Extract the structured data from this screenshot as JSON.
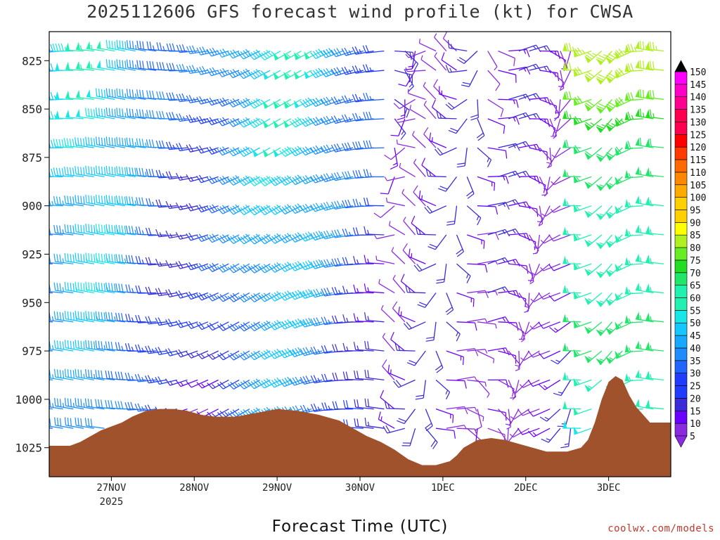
{
  "title": "2025112606 GFS forecast wind profile (kt) for CWSA",
  "xaxis_title": "Forecast Time (UTC)",
  "credit": "coolwx.com/models",
  "colors": {
    "terrain": "#a0522d",
    "scale": [
      "#8a2be2",
      "#6a00ff",
      "#3b2bd9",
      "#1f3cff",
      "#1e66ff",
      "#1e8cff",
      "#17a8ff",
      "#14c8ff",
      "#19e6e6",
      "#20f0b0",
      "#22e66a",
      "#22dd22",
      "#66ee22",
      "#b0f020",
      "#ffff00",
      "#ffd000",
      "#ffaa00",
      "#ff8800",
      "#ff6a00",
      "#ff3b00",
      "#ff0000",
      "#ff0050",
      "#ff0090",
      "#ff00c8",
      "#ff00ff"
    ]
  },
  "chart_data": {
    "type": "wind-barb-profile",
    "title": "2025112606 GFS forecast wind profile (kt) for CWSA",
    "xlabel": "Forecast Time (UTC)",
    "ylabel": "",
    "y_reversed": true,
    "ylim": [
      1040,
      810
    ],
    "y_ticks": [
      825,
      850,
      875,
      900,
      925,
      950,
      975,
      1000,
      1025
    ],
    "pressure_levels": [
      820,
      830,
      845,
      855,
      870,
      885,
      900,
      915,
      930,
      945,
      960,
      975,
      990,
      1005,
      1015
    ],
    "x_ticks": [
      {
        "label": "27NOV",
        "sub": "2025",
        "t": 18
      },
      {
        "label": "28NOV",
        "sub": "",
        "t": 42
      },
      {
        "label": "29NOV",
        "sub": "",
        "t": 66
      },
      {
        "label": "30NOV",
        "sub": "",
        "t": 90
      },
      {
        "label": "1DEC",
        "sub": "",
        "t": 114
      },
      {
        "label": "2DEC",
        "sub": "",
        "t": 138
      },
      {
        "label": "3DEC",
        "sub": "",
        "t": 162
      }
    ],
    "xlim": [
      0,
      180
    ],
    "colorbar": {
      "levels": [
        5,
        10,
        15,
        20,
        25,
        30,
        35,
        40,
        45,
        50,
        55,
        60,
        65,
        70,
        75,
        80,
        85,
        90,
        95,
        100,
        105,
        110,
        115,
        120,
        125,
        130,
        135,
        140,
        145,
        150
      ],
      "units": "kt"
    },
    "terrain_surface_pressure": [
      {
        "t": 0,
        "p": 1024
      },
      {
        "t": 6,
        "p": 1024
      },
      {
        "t": 9,
        "p": 1022
      },
      {
        "t": 12,
        "p": 1019
      },
      {
        "t": 15,
        "p": 1016
      },
      {
        "t": 18,
        "p": 1014
      },
      {
        "t": 21,
        "p": 1012
      },
      {
        "t": 24,
        "p": 1009
      },
      {
        "t": 28,
        "p": 1006
      },
      {
        "t": 32,
        "p": 1005
      },
      {
        "t": 36,
        "p": 1005
      },
      {
        "t": 40,
        "p": 1006
      },
      {
        "t": 44,
        "p": 1008
      },
      {
        "t": 48,
        "p": 1009
      },
      {
        "t": 54,
        "p": 1009
      },
      {
        "t": 60,
        "p": 1007
      },
      {
        "t": 66,
        "p": 1005
      },
      {
        "t": 72,
        "p": 1006
      },
      {
        "t": 78,
        "p": 1008
      },
      {
        "t": 84,
        "p": 1011
      },
      {
        "t": 88,
        "p": 1015
      },
      {
        "t": 92,
        "p": 1019
      },
      {
        "t": 96,
        "p": 1022
      },
      {
        "t": 100,
        "p": 1026
      },
      {
        "t": 104,
        "p": 1031
      },
      {
        "t": 108,
        "p": 1034
      },
      {
        "t": 112,
        "p": 1034
      },
      {
        "t": 116,
        "p": 1032
      },
      {
        "t": 118,
        "p": 1029
      },
      {
        "t": 120,
        "p": 1025
      },
      {
        "t": 124,
        "p": 1021
      },
      {
        "t": 128,
        "p": 1020
      },
      {
        "t": 132,
        "p": 1021
      },
      {
        "t": 136,
        "p": 1023
      },
      {
        "t": 140,
        "p": 1025
      },
      {
        "t": 144,
        "p": 1027
      },
      {
        "t": 150,
        "p": 1027
      },
      {
        "t": 154,
        "p": 1025
      },
      {
        "t": 156,
        "p": 1021
      },
      {
        "t": 158,
        "p": 1012
      },
      {
        "t": 160,
        "p": 1000
      },
      {
        "t": 162,
        "p": 991
      },
      {
        "t": 164,
        "p": 988
      },
      {
        "t": 166,
        "p": 990
      },
      {
        "t": 168,
        "p": 998
      },
      {
        "t": 170,
        "p": 1004
      },
      {
        "t": 172,
        "p": 1008
      },
      {
        "t": 174,
        "p": 1012
      },
      {
        "t": 180,
        "p": 1012
      }
    ]
  }
}
